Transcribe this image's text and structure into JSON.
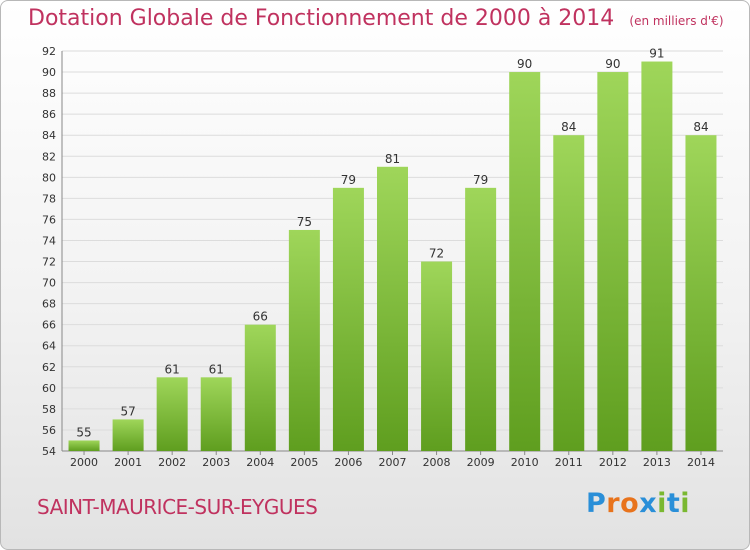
{
  "header": {
    "title": "Dotation Globale de Fonctionnement de 2000 à 2014",
    "subtitle": "(en milliers d'€)"
  },
  "footer": {
    "commune": "SAINT-MAURICE-SUR-EYGUES",
    "logo_text": "Proxiti"
  },
  "colors": {
    "title": "#c0325f",
    "bar_light": "#9fd65a",
    "bar_dark": "#5f9e1f",
    "logo_letters": [
      "#2a8fd8",
      "#e8731c",
      "#e8731c",
      "#2a8fd8",
      "#7ab831",
      "#2a8fd8",
      "#7ab831"
    ]
  },
  "chart_data": {
    "type": "bar",
    "categories": [
      "2000",
      "2001",
      "2002",
      "2003",
      "2004",
      "2005",
      "2006",
      "2007",
      "2008",
      "2009",
      "2010",
      "2011",
      "2012",
      "2013",
      "2014"
    ],
    "values": [
      55,
      57,
      61,
      61,
      66,
      75,
      79,
      81,
      72,
      79,
      90,
      84,
      90,
      91,
      84
    ],
    "ylim": [
      54,
      92
    ],
    "yticks": [
      54,
      56,
      58,
      60,
      62,
      64,
      66,
      68,
      70,
      72,
      74,
      76,
      78,
      80,
      82,
      84,
      86,
      88,
      90,
      92
    ],
    "grid": true,
    "legend": "none"
  }
}
